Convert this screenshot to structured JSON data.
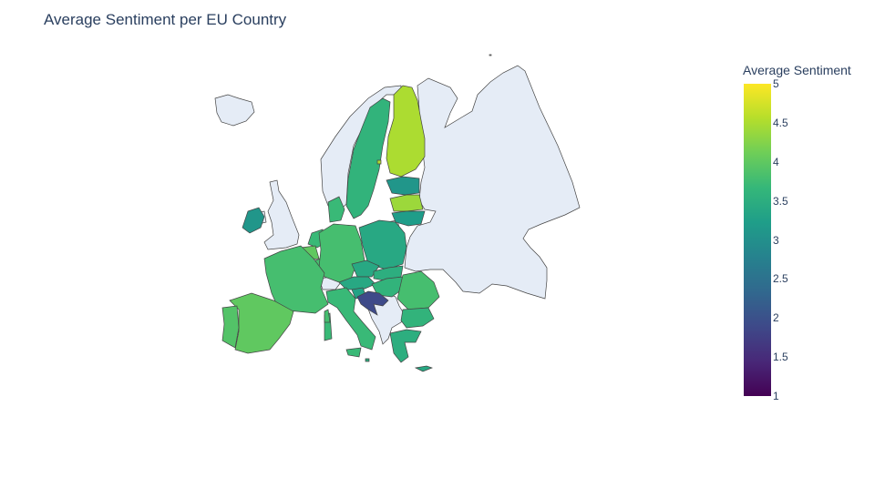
{
  "chart_data": {
    "type": "choropleth",
    "title": "Average Sentiment per EU Country",
    "colorbar": {
      "title": "Average Sentiment",
      "range": [
        1,
        5
      ],
      "ticks": [
        "1",
        "1.5",
        "2",
        "2.5",
        "3",
        "3.5",
        "4",
        "4.5",
        "5"
      ],
      "colorscale": "Viridis",
      "colors": [
        "#440154",
        "#482878",
        "#3e4989",
        "#31688e",
        "#26828e",
        "#1f9e89",
        "#35b779",
        "#6ece58",
        "#b5de2b",
        "#fde725"
      ]
    },
    "countries": [
      {
        "name": "Finland",
        "value": 4.5
      },
      {
        "name": "Sweden",
        "value": 3.6
      },
      {
        "name": "Estonia",
        "value": 3.1
      },
      {
        "name": "Latvia",
        "value": 4.4
      },
      {
        "name": "Lithuania",
        "value": 3.2
      },
      {
        "name": "Ireland",
        "value": 3.1
      },
      {
        "name": "Denmark",
        "value": 3.7
      },
      {
        "name": "Netherlands",
        "value": 3.7
      },
      {
        "name": "Belgium",
        "value": 4.0
      },
      {
        "name": "Luxembourg",
        "value": 3.8
      },
      {
        "name": "Germany",
        "value": 3.8
      },
      {
        "name": "Poland",
        "value": 3.4
      },
      {
        "name": "Czechia",
        "value": 3.4
      },
      {
        "name": "Slovakia",
        "value": 3.5
      },
      {
        "name": "Austria",
        "value": 3.4
      },
      {
        "name": "Hungary",
        "value": 3.6
      },
      {
        "name": "Slovenia",
        "value": 3.3
      },
      {
        "name": "Croatia",
        "value": 1.9
      },
      {
        "name": "Romania",
        "value": 3.8
      },
      {
        "name": "Bulgaria",
        "value": 3.6
      },
      {
        "name": "Greece",
        "value": 3.5
      },
      {
        "name": "Italy",
        "value": 3.7
      },
      {
        "name": "France",
        "value": 3.8
      },
      {
        "name": "Spain",
        "value": 4.0
      },
      {
        "name": "Portugal",
        "value": 3.9
      },
      {
        "name": "Cyprus",
        "value": 3.4
      },
      {
        "name": "Malta",
        "value": 3.5
      }
    ],
    "non_eu_fill": "#e5ecf6",
    "border_color": "#444444"
  }
}
